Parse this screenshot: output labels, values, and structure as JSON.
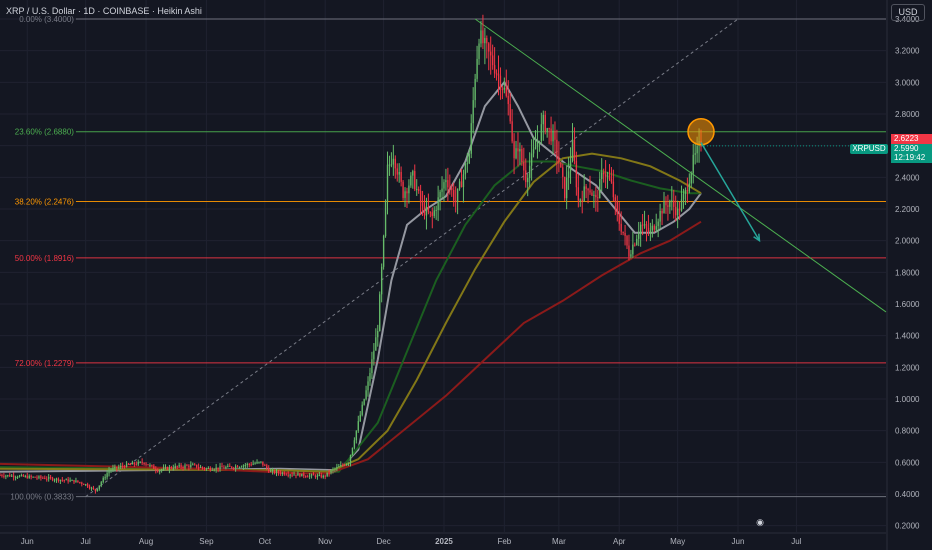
{
  "header": {
    "title": "XRP / U.S. Dollar · 1D · COINBASE · Heikin Ashi",
    "currency": "USD"
  },
  "price_tags": {
    "ticker": "XRPUSD",
    "last_price": "2.5990",
    "countdown": "12:19:42",
    "fib_price": "2.6223"
  },
  "goto_icon": "calendar-goto-icon",
  "colors": {
    "background": "#141722",
    "grid": "#1f2230",
    "up_candle": "#66bb6a",
    "down_candle": "#f23645",
    "fib_0": "#787b86",
    "fib_23_6": "#4caf50",
    "fib_38_2": "#ff9800",
    "fib_50": "#f23645",
    "fib_72": "#f23645",
    "fib_100": "#787b86",
    "ma_fast": "#9598a1",
    "ma_mid": "#1b5e20",
    "ma_olive": "#827717",
    "ma_slow": "#8b1a1a",
    "trendline": "#4caf50",
    "arrow": "#26a69a",
    "circle": "#ff9800"
  },
  "chart_data": {
    "type": "candlestick",
    "chart_style": "Heikin Ashi",
    "symbol": "XRP / U.S. Dollar",
    "interval": "1D",
    "exchange": "COINBASE",
    "currency": "USD",
    "ylim": [
      0.16,
      3.52
    ],
    "y_ticks": [
      "3.4000",
      "3.2000",
      "3.0000",
      "2.8000",
      "2.6000",
      "2.4000",
      "2.2000",
      "2.0000",
      "1.8000",
      "1.6000",
      "1.4000",
      "1.2000",
      "1.0000",
      "0.8000",
      "0.6000",
      "0.4000",
      "0.2000"
    ],
    "x_ticks": [
      "Jun",
      "Jul",
      "Aug",
      "Sep",
      "Oct",
      "Nov",
      "Dec",
      "2025",
      "Feb",
      "Mar",
      "Apr",
      "May",
      "Jun",
      "Jul"
    ],
    "x_tick_days": [
      -30,
      0,
      31,
      62,
      92,
      123,
      153,
      184,
      215,
      243,
      274,
      304,
      335,
      365
    ],
    "x_range_days": [
      -44,
      411
    ],
    "fib_levels": [
      {
        "label": "0.00% (3.4000)",
        "value": 3.4,
        "color": "#787b86"
      },
      {
        "label": "23.60% (2.6880)",
        "value": 2.688,
        "color": "#4caf50"
      },
      {
        "label": "38.20% (2.2476)",
        "value": 2.2476,
        "color": "#ff9800"
      },
      {
        "label": "50.00% (1.8916)",
        "value": 1.8916,
        "color": "#f23645"
      },
      {
        "label": "72.00% (1.2279)",
        "value": 1.2279,
        "color": "#f23645"
      },
      {
        "label": "100.00% (0.3833)",
        "value": 0.3833,
        "color": "#787b86"
      }
    ],
    "price_keypoints": [
      [
        -44,
        0.52
      ],
      [
        -20,
        0.5
      ],
      [
        -5,
        0.48
      ],
      [
        0,
        0.46
      ],
      [
        5,
        0.42
      ],
      [
        12,
        0.55
      ],
      [
        20,
        0.58
      ],
      [
        30,
        0.6
      ],
      [
        37,
        0.55
      ],
      [
        45,
        0.57
      ],
      [
        55,
        0.58
      ],
      [
        62,
        0.56
      ],
      [
        75,
        0.57
      ],
      [
        90,
        0.6
      ],
      [
        95,
        0.54
      ],
      [
        110,
        0.52
      ],
      [
        122,
        0.51
      ],
      [
        128,
        0.56
      ],
      [
        135,
        0.6
      ],
      [
        140,
        0.85
      ],
      [
        145,
        1.1
      ],
      [
        150,
        1.45
      ],
      [
        153,
        2.0
      ],
      [
        155,
        2.45
      ],
      [
        158,
        2.55
      ],
      [
        163,
        2.3
      ],
      [
        168,
        2.4
      ],
      [
        173,
        2.2
      ],
      [
        178,
        2.15
      ],
      [
        185,
        2.4
      ],
      [
        190,
        2.25
      ],
      [
        197,
        2.55
      ],
      [
        200,
        3.05
      ],
      [
        202,
        3.3
      ],
      [
        206,
        3.2
      ],
      [
        210,
        3.1
      ],
      [
        215,
        2.95
      ],
      [
        218,
        2.8
      ],
      [
        220,
        2.5
      ],
      [
        222,
        2.6
      ],
      [
        226,
        2.4
      ],
      [
        230,
        2.55
      ],
      [
        235,
        2.75
      ],
      [
        240,
        2.65
      ],
      [
        243,
        2.5
      ],
      [
        246,
        2.3
      ],
      [
        250,
        2.6
      ],
      [
        253,
        2.25
      ],
      [
        258,
        2.35
      ],
      [
        262,
        2.25
      ],
      [
        266,
        2.45
      ],
      [
        270,
        2.35
      ],
      [
        273,
        2.15
      ],
      [
        276,
        2.05
      ],
      [
        279,
        1.92
      ],
      [
        282,
        2.0
      ],
      [
        285,
        2.1
      ],
      [
        290,
        2.05
      ],
      [
        296,
        2.2
      ],
      [
        300,
        2.25
      ],
      [
        304,
        2.18
      ],
      [
        308,
        2.3
      ],
      [
        312,
        2.5
      ],
      [
        316,
        2.62
      ]
    ],
    "moving_averages": [
      {
        "name": "fast",
        "color": "#9598a1",
        "points": [
          [
            -44,
            0.54
          ],
          [
            100,
            0.56
          ],
          [
            130,
            0.55
          ],
          [
            140,
            0.68
          ],
          [
            150,
            1.25
          ],
          [
            157,
            1.75
          ],
          [
            165,
            2.1
          ],
          [
            175,
            2.2
          ],
          [
            185,
            2.28
          ],
          [
            195,
            2.5
          ],
          [
            205,
            2.85
          ],
          [
            215,
            3.0
          ],
          [
            222,
            2.85
          ],
          [
            230,
            2.65
          ],
          [
            240,
            2.55
          ],
          [
            250,
            2.45
          ],
          [
            262,
            2.35
          ],
          [
            272,
            2.2
          ],
          [
            282,
            2.05
          ],
          [
            292,
            2.05
          ],
          [
            302,
            2.12
          ],
          [
            310,
            2.2
          ],
          [
            316,
            2.3
          ]
        ]
      },
      {
        "name": "mid",
        "color": "#1b5e20",
        "points": [
          [
            -44,
            0.57
          ],
          [
            100,
            0.55
          ],
          [
            130,
            0.54
          ],
          [
            150,
            0.85
          ],
          [
            165,
            1.3
          ],
          [
            180,
            1.75
          ],
          [
            195,
            2.1
          ],
          [
            210,
            2.35
          ],
          [
            225,
            2.5
          ],
          [
            240,
            2.5
          ],
          [
            252,
            2.47
          ],
          [
            265,
            2.44
          ],
          [
            280,
            2.38
          ],
          [
            295,
            2.33
          ],
          [
            310,
            2.3
          ],
          [
            316,
            2.3
          ]
        ]
      },
      {
        "name": "olive",
        "color": "#827717",
        "points": [
          [
            -44,
            0.56
          ],
          [
            100,
            0.55
          ],
          [
            125,
            0.54
          ],
          [
            140,
            0.62
          ],
          [
            155,
            0.8
          ],
          [
            170,
            1.12
          ],
          [
            185,
            1.48
          ],
          [
            200,
            1.82
          ],
          [
            215,
            2.12
          ],
          [
            230,
            2.37
          ],
          [
            245,
            2.52
          ],
          [
            260,
            2.55
          ],
          [
            275,
            2.52
          ],
          [
            290,
            2.47
          ],
          [
            305,
            2.38
          ],
          [
            316,
            2.3
          ]
        ]
      },
      {
        "name": "slow",
        "color": "#8b1a1a",
        "points": [
          [
            -44,
            0.59
          ],
          [
            60,
            0.56
          ],
          [
            110,
            0.53
          ],
          [
            125,
            0.53
          ],
          [
            145,
            0.62
          ],
          [
            165,
            0.82
          ],
          [
            185,
            1.02
          ],
          [
            205,
            1.25
          ],
          [
            225,
            1.48
          ],
          [
            245,
            1.62
          ],
          [
            265,
            1.78
          ],
          [
            285,
            1.92
          ],
          [
            300,
            2.0
          ],
          [
            316,
            2.12
          ]
        ]
      }
    ],
    "trendlines": [
      {
        "name": "descending-trendline",
        "from": [
          200,
          3.4
        ],
        "to": [
          411,
          1.55
        ]
      },
      {
        "name": "fib-diagonal",
        "from": [
          0,
          0.3833
        ],
        "to": [
          335,
          3.4
        ]
      }
    ],
    "projection_arrow": {
      "from": [
        316,
        2.62
      ],
      "to": [
        346,
        2.0
      ]
    },
    "highlight_circle": {
      "center": [
        316,
        2.688
      ]
    }
  }
}
